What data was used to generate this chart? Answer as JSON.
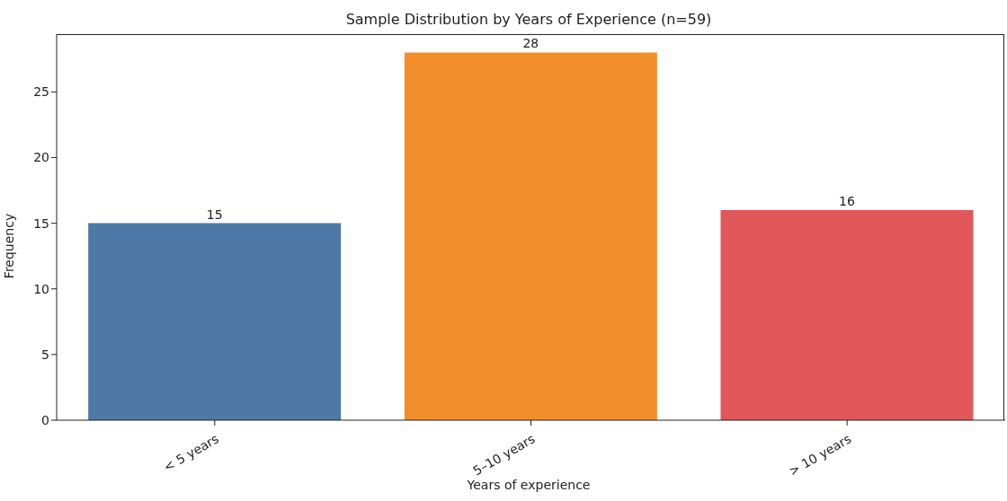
{
  "chart_data": {
    "type": "bar",
    "title": "Sample Distribution by Years of Experience (n=59)",
    "xlabel": "Years of experience",
    "ylabel": "Frequency",
    "categories": [
      "< 5 years",
      "5–10 years",
      "> 10 years"
    ],
    "values": [
      15,
      28,
      16
    ],
    "colors": [
      "#4e79a7",
      "#f28e2b",
      "#e15759"
    ],
    "ylim": [
      0,
      29.4
    ],
    "yticks": [
      0,
      5,
      10,
      15,
      20,
      25
    ],
    "data_labels": true
  }
}
